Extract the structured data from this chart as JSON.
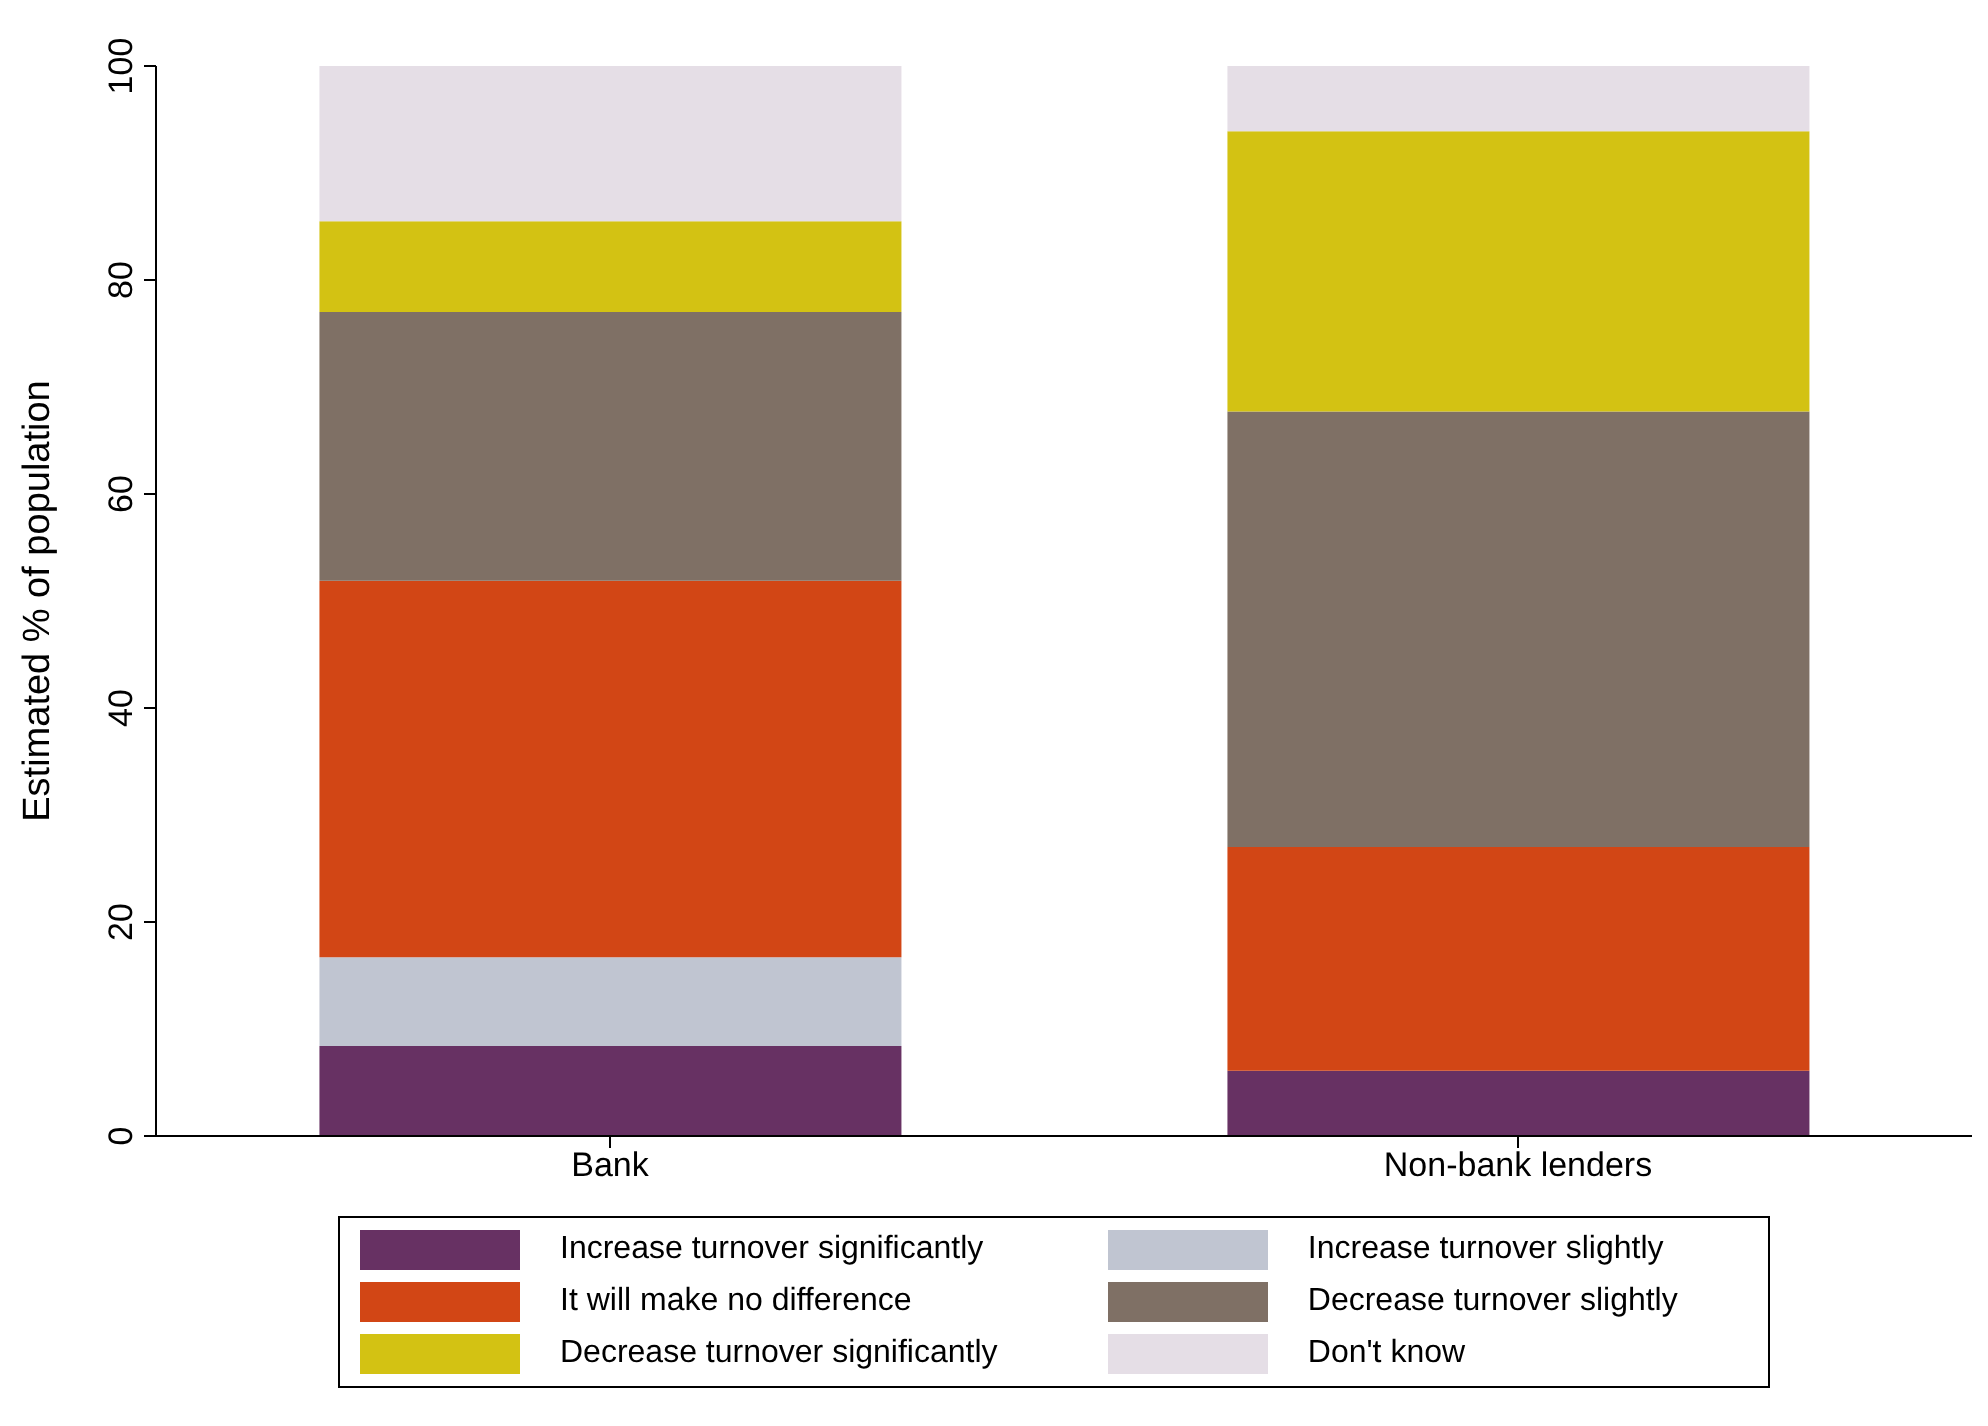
{
  "chart_data": {
    "type": "bar",
    "stacked": true,
    "ylabel": "Estimated % of population",
    "categories": [
      "Bank",
      "Non-bank lenders"
    ],
    "series": [
      {
        "name": "Increase turnover significantly",
        "color": "#673163",
        "values": [
          8.4,
          6.1
        ]
      },
      {
        "name": "Increase turnover slightly",
        "color": "#c0c5d1",
        "values": [
          8.3,
          0
        ]
      },
      {
        "name": "It will make no difference",
        "color": "#d24615",
        "values": [
          35.2,
          20.9
        ]
      },
      {
        "name": "Decrease turnover slightly",
        "color": "#7f7065",
        "values": [
          25.1,
          40.7
        ]
      },
      {
        "name": "Decrease turnover significantly",
        "color": "#d3c213",
        "values": [
          8.5,
          26.2
        ]
      },
      {
        "name": "Don't know",
        "color": "#e5dee6",
        "values": [
          14.5,
          6.1
        ]
      }
    ],
    "ylim": [
      0,
      100
    ],
    "yticks": [
      0,
      20,
      40,
      60,
      80,
      100
    ],
    "grid": false,
    "legend": "bottom"
  }
}
